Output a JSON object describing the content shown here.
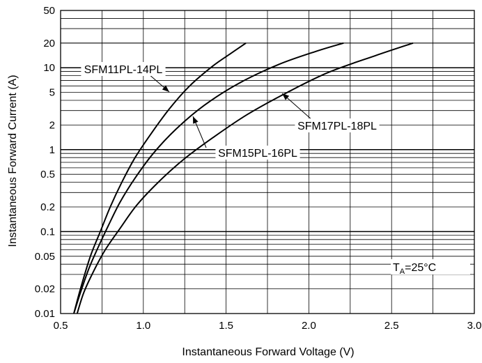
{
  "chart_data": {
    "type": "line",
    "title": "",
    "xlabel": "Instantaneous Forward Voltage (V)",
    "ylabel": "Instantaneous Forward Current (A)",
    "xlim": [
      0.5,
      3.0
    ],
    "ylim": [
      0.01,
      50
    ],
    "y_scale": "log",
    "grid": true,
    "x_ticks": [
      0.5,
      1.0,
      1.5,
      2.0,
      2.5,
      3.0
    ],
    "x_tick_labels": [
      "0.5",
      "1.0",
      "1.5",
      "2.0",
      "2.5",
      "3.0"
    ],
    "y_ticks": [
      0.01,
      0.02,
      0.05,
      0.1,
      0.2,
      0.5,
      1,
      2,
      5,
      10,
      20,
      50
    ],
    "y_tick_labels": [
      "0.01",
      "0.02",
      "0.05",
      "0.1",
      "0.2",
      "0.5",
      "1",
      "2",
      "5",
      "10",
      "20",
      "50"
    ],
    "series": [
      {
        "name": "SFM11PL-14PL",
        "x": [
          0.58,
          0.62,
          0.68,
          0.74,
          0.8,
          0.87,
          0.95,
          1.05,
          1.16,
          1.28,
          1.42,
          1.53,
          1.62
        ],
        "y": [
          0.01,
          0.02,
          0.05,
          0.1,
          0.2,
          0.4,
          0.8,
          1.6,
          3.2,
          6.0,
          10.5,
          15.0,
          20.0
        ]
      },
      {
        "name": "SFM15PL-16PL",
        "x": [
          0.58,
          0.62,
          0.67,
          0.72,
          0.79,
          0.86,
          0.95,
          1.06,
          1.2,
          1.37,
          1.58,
          1.82,
          2.05,
          2.21
        ],
        "y": [
          0.01,
          0.018,
          0.035,
          0.06,
          0.12,
          0.23,
          0.45,
          0.9,
          1.8,
          3.5,
          6.5,
          11.0,
          16.0,
          20.0
        ]
      },
      {
        "name": "SFM17PL-18PL",
        "x": [
          0.6,
          0.64,
          0.7,
          0.77,
          0.86,
          0.96,
          1.09,
          1.24,
          1.42,
          1.63,
          1.87,
          2.12,
          2.4,
          2.63
        ],
        "y": [
          0.01,
          0.018,
          0.033,
          0.06,
          0.11,
          0.21,
          0.4,
          0.75,
          1.4,
          2.7,
          5.0,
          8.8,
          14.0,
          20.0
        ]
      }
    ],
    "annotations": {
      "label_11": "SFM11PL-14PL",
      "label_15": "SFM15PL-16PL",
      "label_17": "SFM17PL-18PL",
      "ta_prefix": "T",
      "ta_sub": "A",
      "ta_suffix": "=25°C"
    }
  }
}
